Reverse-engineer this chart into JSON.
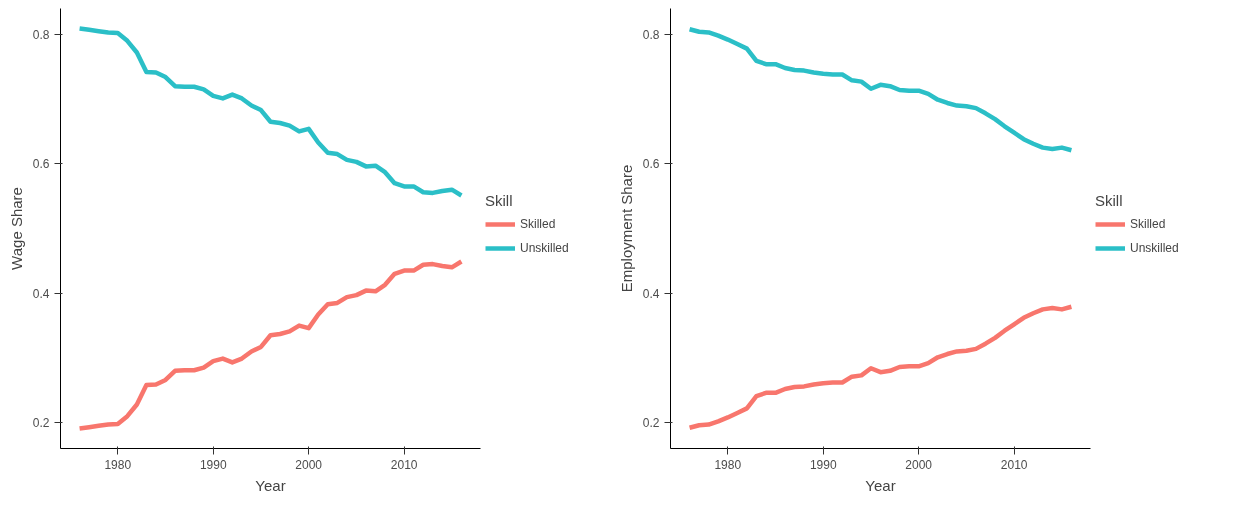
{
  "chart_data": [
    {
      "type": "line",
      "xlabel": "Year",
      "ylabel": "Wage Share",
      "legend_title": "Skill",
      "legend": "right",
      "grid": false,
      "xlim": [
        1974,
        2018
      ],
      "ylim": [
        0.16,
        0.84
      ],
      "xticks": [
        1980,
        1990,
        2000,
        2010
      ],
      "yticks": [
        0.2,
        0.4,
        0.6,
        0.8
      ],
      "x": [
        1976,
        1977,
        1978,
        1979,
        1980,
        1981,
        1982,
        1983,
        1984,
        1985,
        1986,
        1987,
        1988,
        1989,
        1990,
        1991,
        1992,
        1993,
        1994,
        1995,
        1996,
        1997,
        1998,
        1999,
        2000,
        2001,
        2002,
        2003,
        2004,
        2005,
        2006,
        2007,
        2008,
        2009,
        2010,
        2011,
        2012,
        2013,
        2014,
        2015,
        2016
      ],
      "series": [
        {
          "name": "Skilled",
          "color": "#f8766d",
          "values": [
            0.191,
            0.193,
            0.195,
            0.197,
            0.198,
            0.21,
            0.228,
            0.258,
            0.259,
            0.266,
            0.28,
            0.281,
            0.281,
            0.285,
            0.295,
            0.299,
            0.293,
            0.299,
            0.31,
            0.317,
            0.335,
            0.337,
            0.341,
            0.35,
            0.346,
            0.367,
            0.383,
            0.385,
            0.394,
            0.397,
            0.404,
            0.403,
            0.413,
            0.43,
            0.435,
            0.435,
            0.444,
            0.445,
            0.442,
            0.44,
            0.449
          ]
        },
        {
          "name": "Unskilled",
          "color": "#2bbfc7",
          "values": [
            0.809,
            0.807,
            0.805,
            0.803,
            0.802,
            0.79,
            0.772,
            0.742,
            0.741,
            0.734,
            0.72,
            0.719,
            0.719,
            0.715,
            0.705,
            0.701,
            0.707,
            0.701,
            0.69,
            0.683,
            0.665,
            0.663,
            0.659,
            0.65,
            0.654,
            0.633,
            0.617,
            0.615,
            0.606,
            0.603,
            0.596,
            0.597,
            0.587,
            0.57,
            0.565,
            0.565,
            0.556,
            0.555,
            0.558,
            0.56,
            0.551
          ]
        }
      ]
    },
    {
      "type": "line",
      "xlabel": "Year",
      "ylabel": "Employment Share",
      "legend_title": "Skill",
      "legend": "right",
      "grid": false,
      "xlim": [
        1974,
        2018
      ],
      "ylim": [
        0.16,
        0.84
      ],
      "xticks": [
        1980,
        1990,
        2000,
        2010
      ],
      "yticks": [
        0.2,
        0.4,
        0.6,
        0.8
      ],
      "x": [
        1976,
        1977,
        1978,
        1979,
        1980,
        1981,
        1982,
        1983,
        1984,
        1985,
        1986,
        1987,
        1988,
        1989,
        1990,
        1991,
        1992,
        1993,
        1994,
        1995,
        1996,
        1997,
        1998,
        1999,
        2000,
        2001,
        2002,
        2003,
        2004,
        2005,
        2006,
        2007,
        2008,
        2009,
        2010,
        2011,
        2012,
        2013,
        2014,
        2015,
        2016
      ],
      "series": [
        {
          "name": "Skilled",
          "color": "#f8766d",
          "values": [
            0.192,
            0.196,
            0.197,
            0.202,
            0.208,
            0.215,
            0.222,
            0.241,
            0.246,
            0.246,
            0.252,
            0.255,
            0.256,
            0.259,
            0.261,
            0.262,
            0.262,
            0.271,
            0.273,
            0.284,
            0.278,
            0.28,
            0.286,
            0.287,
            0.287,
            0.292,
            0.301,
            0.306,
            0.31,
            0.311,
            0.314,
            0.322,
            0.331,
            0.342,
            0.352,
            0.362,
            0.369,
            0.375,
            0.377,
            0.375,
            0.379
          ]
        },
        {
          "name": "Unskilled",
          "color": "#2bbfc7",
          "values": [
            0.808,
            0.804,
            0.803,
            0.798,
            0.792,
            0.785,
            0.778,
            0.759,
            0.754,
            0.754,
            0.748,
            0.745,
            0.744,
            0.741,
            0.739,
            0.738,
            0.738,
            0.729,
            0.727,
            0.716,
            0.722,
            0.72,
            0.714,
            0.713,
            0.713,
            0.708,
            0.699,
            0.694,
            0.69,
            0.689,
            0.686,
            0.678,
            0.669,
            0.658,
            0.648,
            0.638,
            0.631,
            0.625,
            0.623,
            0.625,
            0.621
          ]
        }
      ]
    }
  ]
}
